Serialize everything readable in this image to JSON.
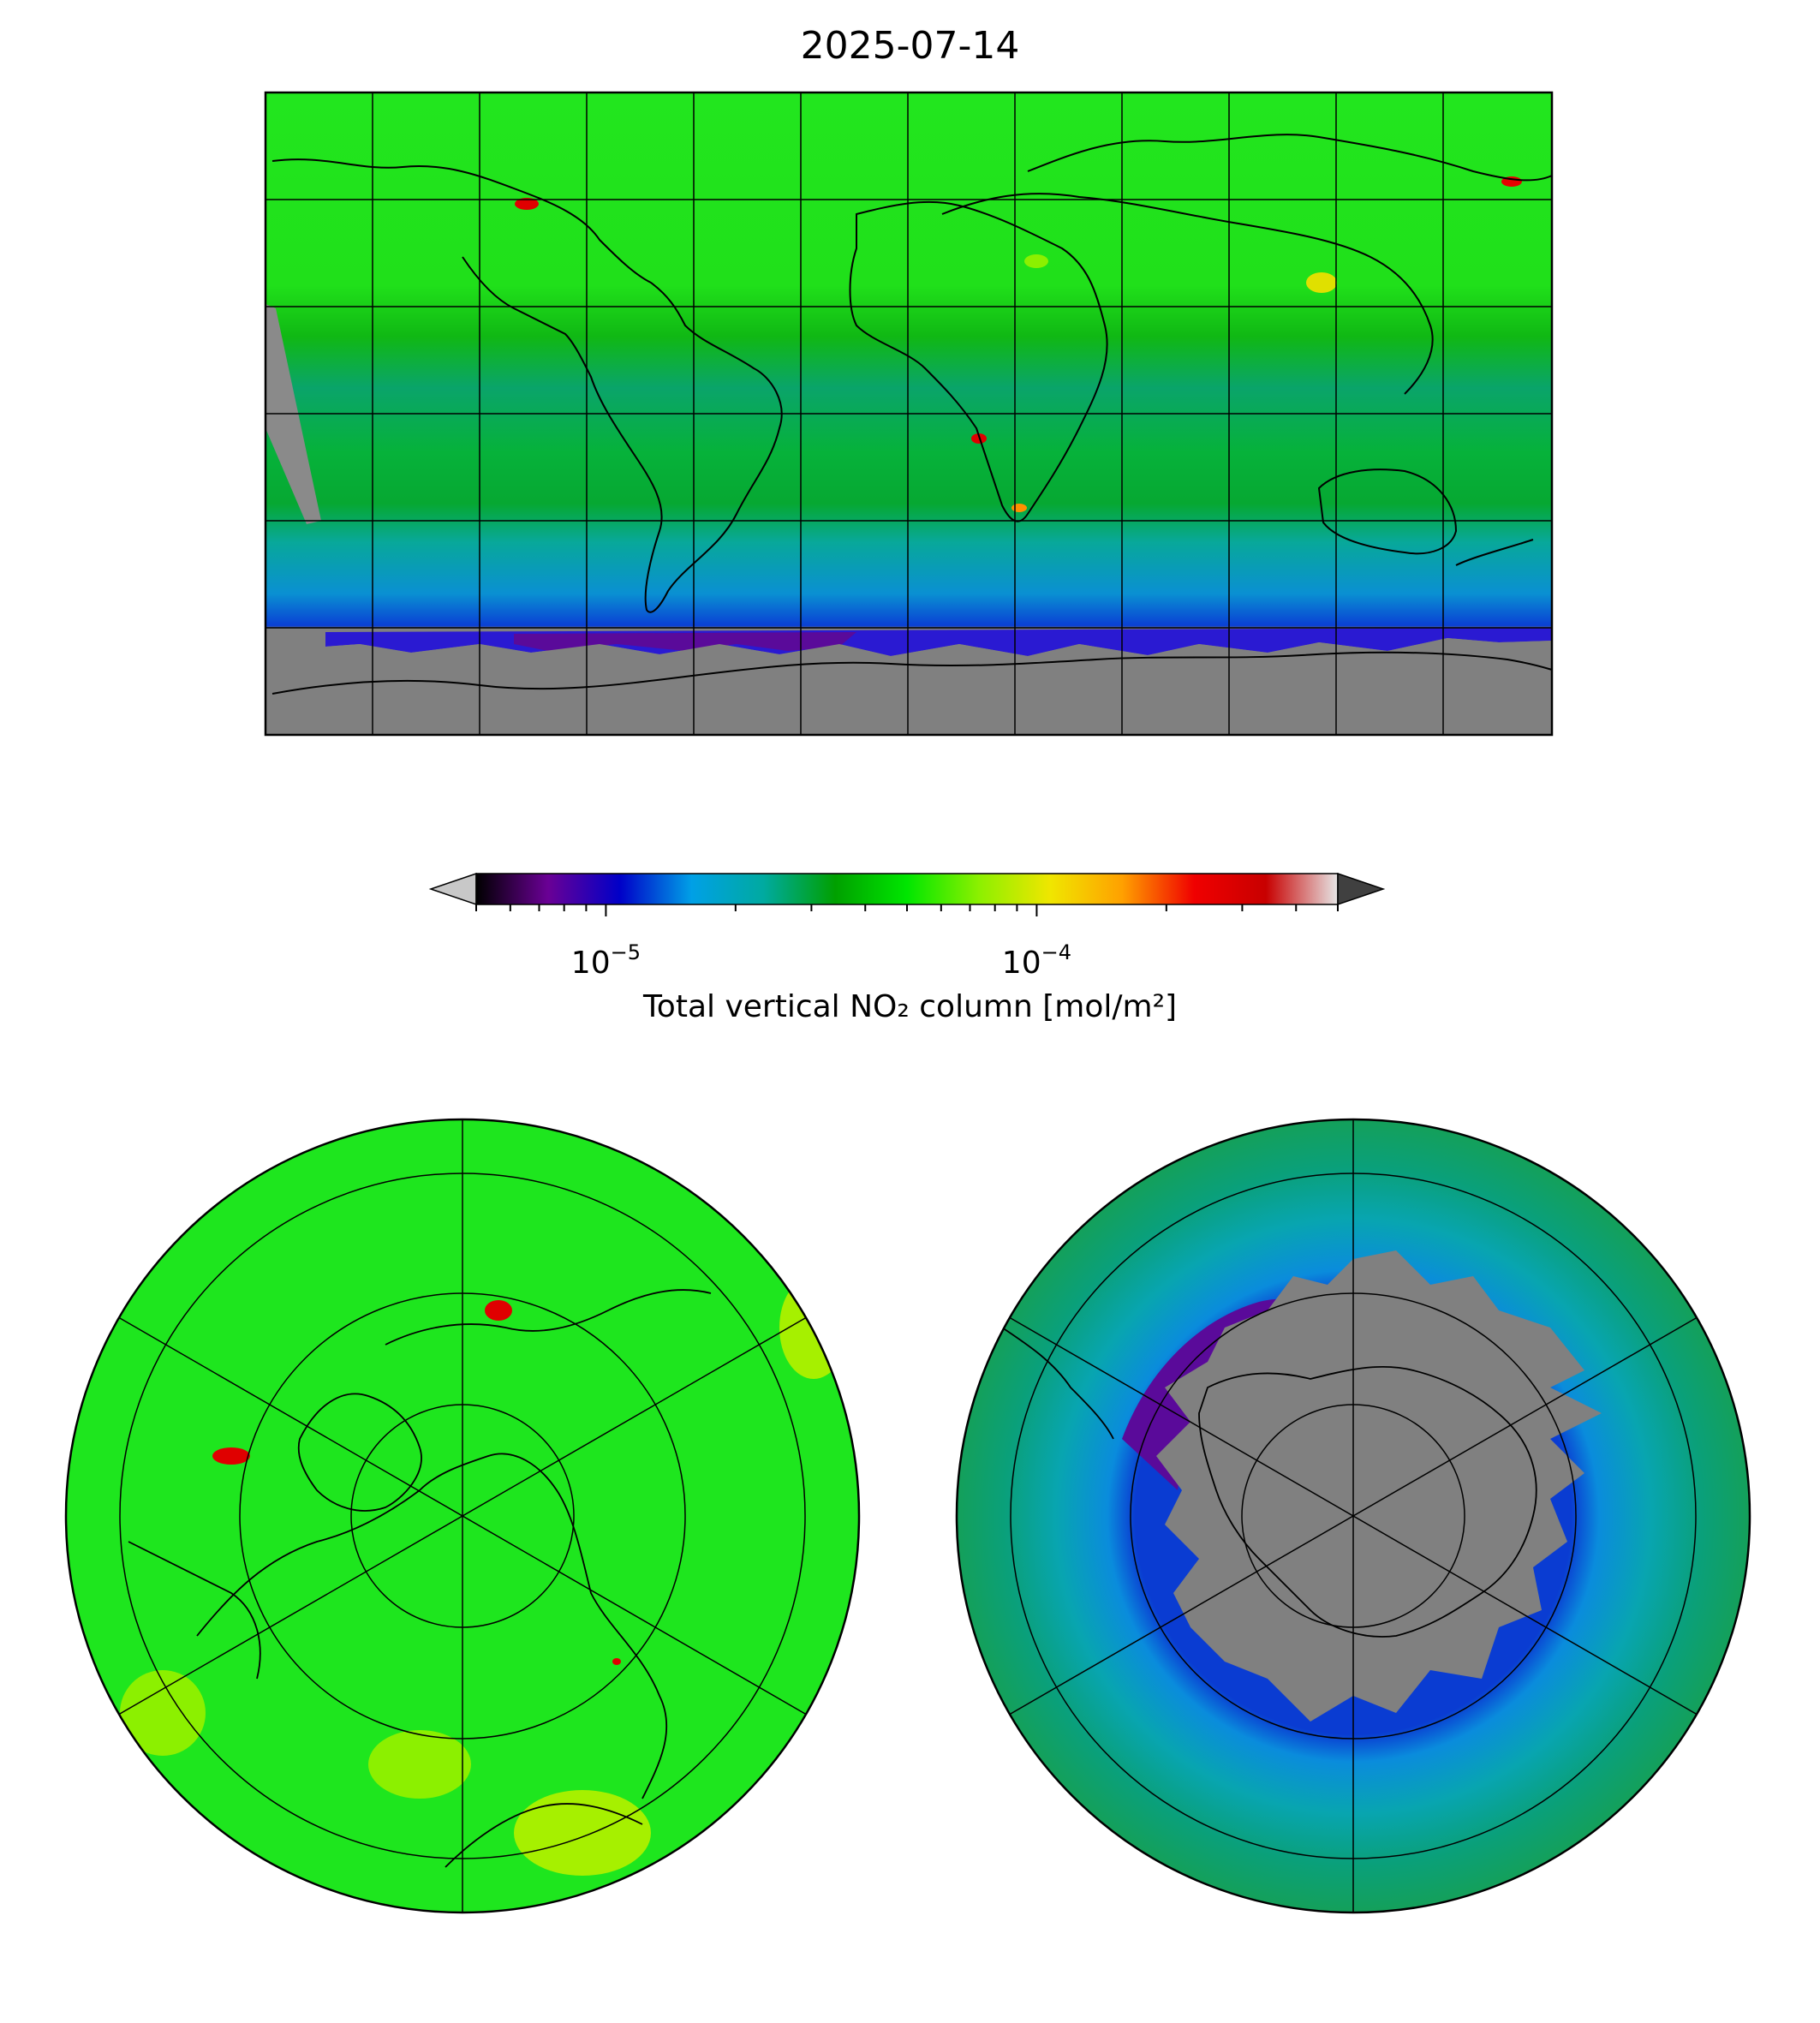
{
  "figure": {
    "title": "2025-07-14"
  },
  "colorbar": {
    "label": "Total vertical NO₂ column [mol/m²]",
    "scale": "log",
    "range": [
      5e-06,
      0.0005
    ],
    "colormap": [
      "#000000",
      "#6a0095",
      "#0000c8",
      "#00a0e6",
      "#00aaa0",
      "#00a000",
      "#00e600",
      "#8cf000",
      "#f0e600",
      "#ffa000",
      "#f00000",
      "#c80000",
      "#e6e6e6"
    ],
    "under_color": "#c8c8c8",
    "over_color": "#404040",
    "ticks": [
      {
        "value": 1e-05,
        "base": "10",
        "exp": "−5"
      },
      {
        "value": 0.0001,
        "base": "10",
        "exp": "−4"
      }
    ]
  },
  "colors": {
    "no_data": "#808080",
    "polar_north_background": "#1ee61e",
    "polar_south_background": "#14a05a"
  },
  "maps": [
    {
      "projection": "plate-carree",
      "extent": "global",
      "gridlines": true,
      "coastlines": true
    },
    {
      "projection": "north-polar-stereographic",
      "gridlines": true,
      "coastlines": true
    },
    {
      "projection": "south-polar-stereographic",
      "gridlines": true,
      "coastlines": true
    }
  ]
}
